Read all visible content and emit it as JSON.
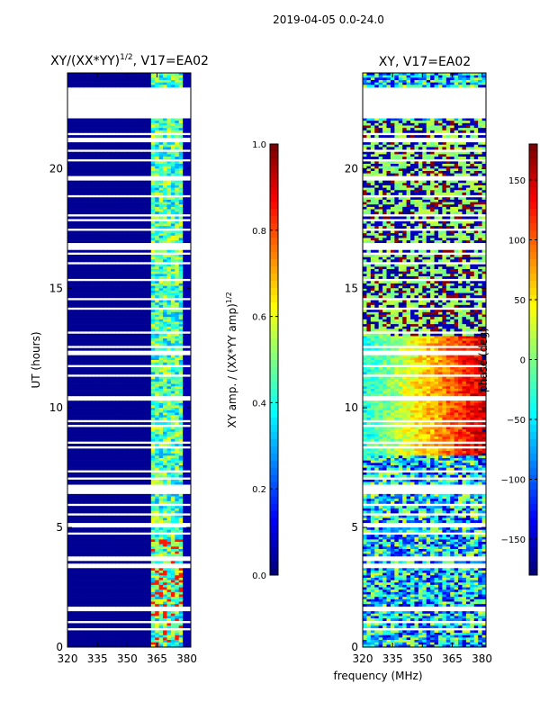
{
  "figure": {
    "suptitle": "2019-04-05 0.0-24.0",
    "xlabel": "frequency (MHz)"
  },
  "colors": {
    "jet": [
      "#00007f",
      "#0000ff",
      "#007fff",
      "#00ffff",
      "#7fff7f",
      "#ffff00",
      "#ff7f00",
      "#ff0000",
      "#7f0000"
    ],
    "axis": "#000000",
    "background": "#ffffff"
  },
  "chart_data": [
    {
      "type": "heatmap",
      "title_main": "XY/(XX*YY)",
      "title_sup": "1/2",
      "title_tail": ", V17=EA02",
      "ylabel": "UT (hours)",
      "xlim": [
        320,
        382
      ],
      "ylim": [
        0,
        24
      ],
      "xticks": [
        320,
        335,
        350,
        365,
        380
      ],
      "yticks": [
        0,
        5,
        10,
        15,
        20
      ],
      "colorbar": {
        "label_main": "XY amp. / (XX*YY amp)",
        "label_sup": "1/2",
        "range": [
          0.0,
          1.0
        ],
        "ticks": [
          "0.0",
          "0.2",
          "0.4",
          "0.6",
          "0.8",
          "1.0"
        ],
        "tick_values": [
          0.0,
          0.2,
          0.4,
          0.6,
          0.8,
          1.0
        ]
      },
      "flagged_ut_ranges": [
        [
          22.1,
          23.3
        ]
      ],
      "low_value_freq_range": [
        320,
        363
      ],
      "active_freq_range": [
        363,
        378
      ],
      "typical_value_low": 0.02,
      "typical_value_active": 0.45
    },
    {
      "type": "heatmap",
      "title": "XY, V17=EA02",
      "xlim": [
        320,
        382
      ],
      "ylim": [
        0,
        24
      ],
      "xticks": [
        320,
        335,
        350,
        365,
        380
      ],
      "yticks": [
        0,
        5,
        10,
        15,
        20
      ],
      "colorbar": {
        "label": "phase (deg)",
        "range": [
          -180,
          180
        ],
        "ticks": [
          "−150",
          "−100",
          "−50",
          "0",
          "50",
          "100",
          "150"
        ],
        "tick_values": [
          -150,
          -100,
          -50,
          0,
          50,
          100,
          150
        ]
      },
      "flagged_ut_ranges": [
        [
          22.1,
          23.3
        ]
      ],
      "phase_gradient_band_ut": [
        8,
        13
      ],
      "typical_phase": -60
    }
  ]
}
